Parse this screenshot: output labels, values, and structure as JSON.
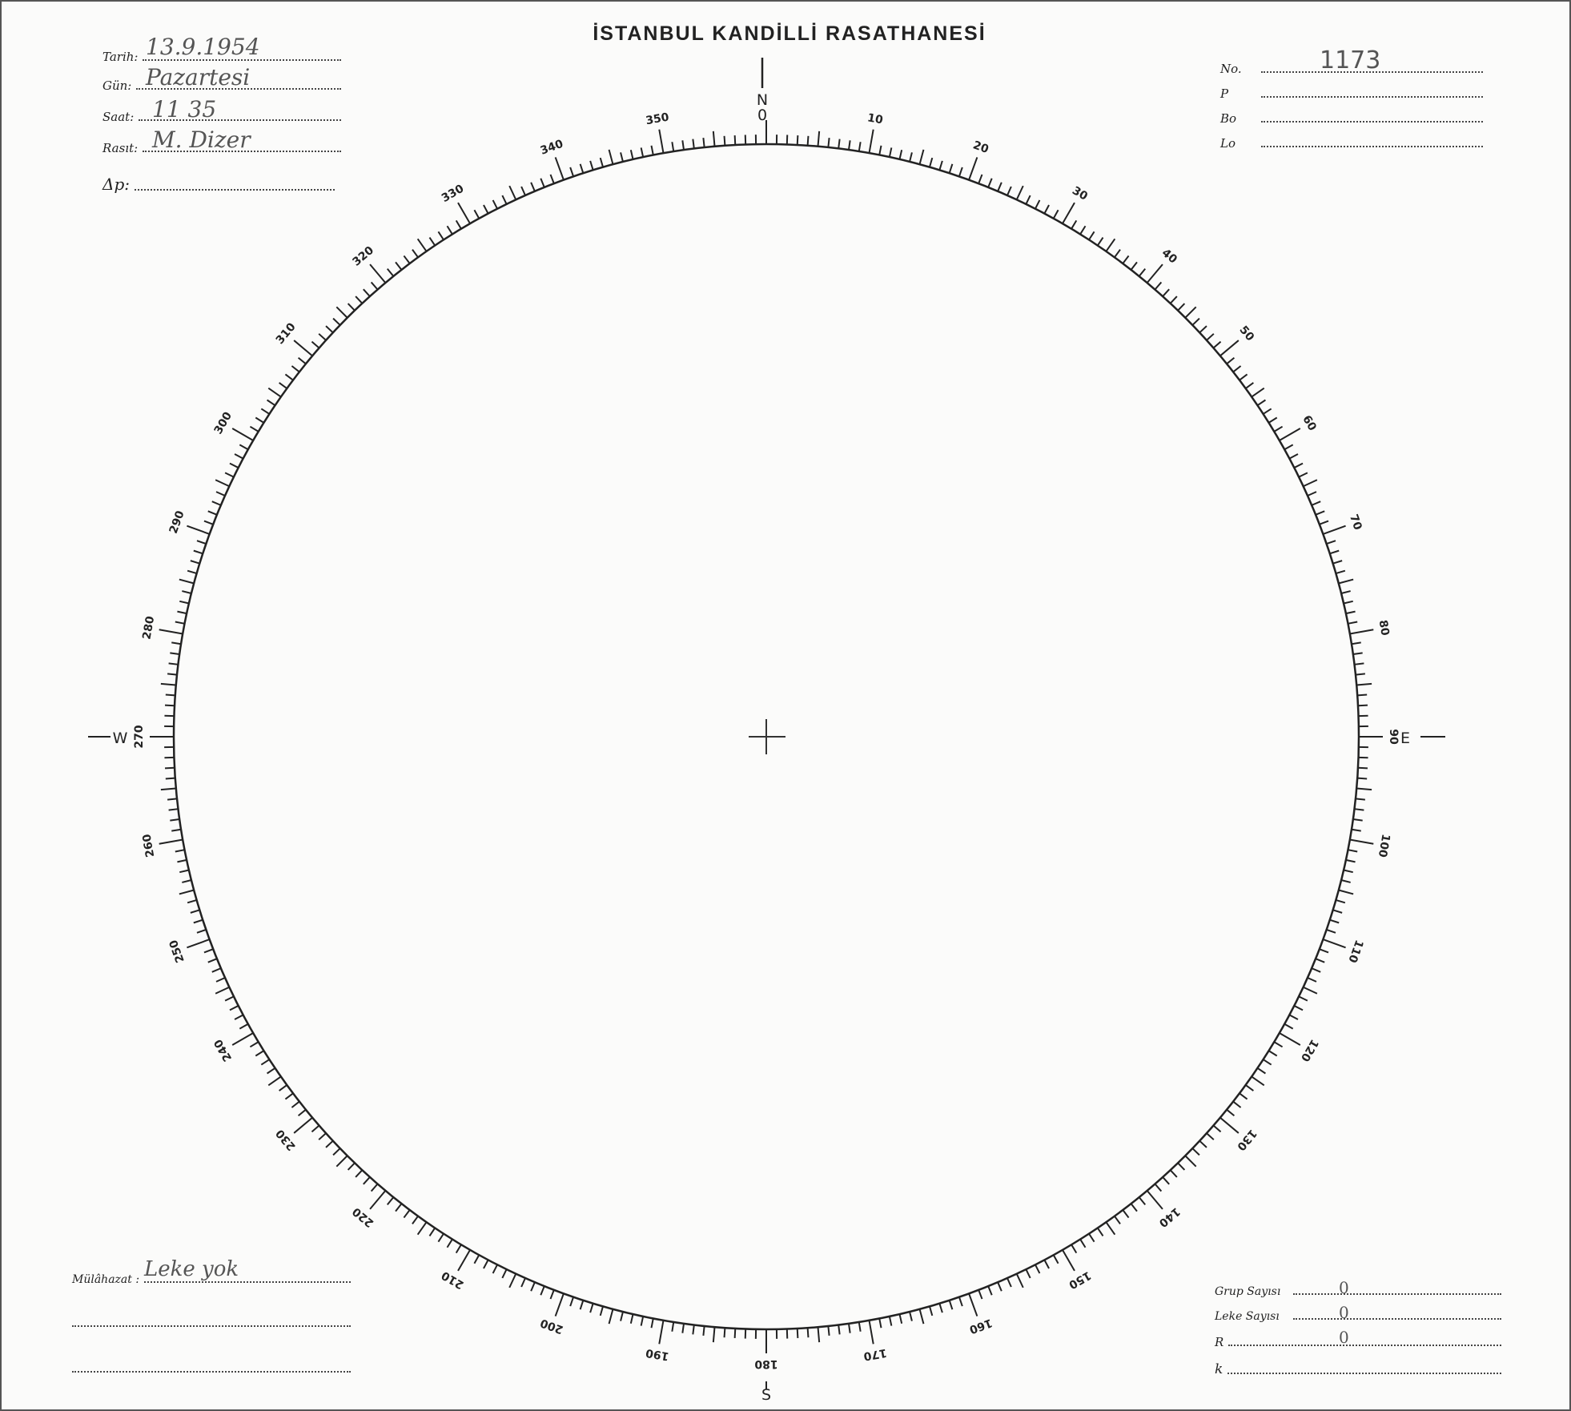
{
  "header": {
    "title": "İSTANBUL KANDİLLİ RASATHANESİ"
  },
  "left_fields": [
    {
      "label": "Tarih:",
      "value": "13.9.1954"
    },
    {
      "label": "Gün:",
      "value": "Pazartesi"
    },
    {
      "label": "Saat:",
      "value": "11 35"
    },
    {
      "label": "Rasıt:",
      "value": "M. Dizer"
    },
    {
      "label": "Δp:",
      "value": ""
    }
  ],
  "right_fields": [
    {
      "label": "No.",
      "value": "1173"
    },
    {
      "label": "P",
      "value": ""
    },
    {
      "label": "Bo",
      "value": ""
    },
    {
      "label": "Lo",
      "value": ""
    }
  ],
  "remarks": {
    "label": "Mülâhazat :",
    "value": "Leke yok"
  },
  "counts": [
    {
      "label": "Grup Sayısı",
      "value": "0"
    },
    {
      "label": "Leke Sayısı",
      "value": "0"
    },
    {
      "label": "R",
      "value": "0"
    },
    {
      "label": "k",
      "value": ""
    }
  ],
  "dial": {
    "cardinals": {
      "north": "N",
      "south": "S",
      "east": "E",
      "west": "W"
    },
    "labels": [
      "0",
      "10",
      "20",
      "30",
      "40",
      "50",
      "60",
      "70",
      "80",
      "90",
      "100",
      "110",
      "120",
      "130",
      "140",
      "150",
      "160",
      "170",
      "180",
      "190",
      "200",
      "210",
      "220",
      "230",
      "240",
      "250",
      "260",
      "270",
      "280",
      "290",
      "300",
      "310",
      "320",
      "330",
      "340",
      "350"
    ]
  }
}
